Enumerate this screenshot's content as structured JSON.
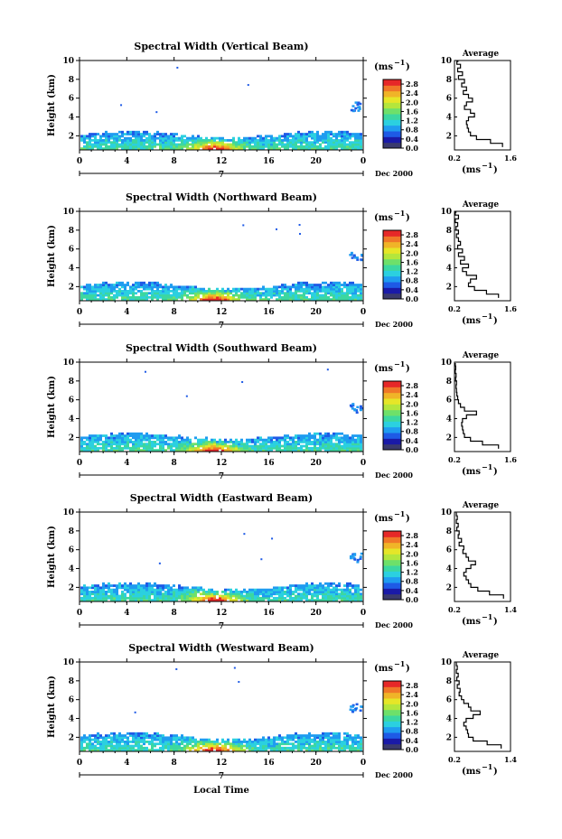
{
  "figure": {
    "xlabel": "Local Time",
    "date_label": "Dec 2000",
    "day_label": "7",
    "y_unit_label": "Height (km)",
    "colorbar_unit": "(ms",
    "colorbar_unit_exp": "−1",
    "colorbar_unit_close": ")",
    "average_title": "Average",
    "average_unit": "(ms",
    "average_unit_exp": "−1",
    "average_unit_close": ")"
  },
  "colors": {
    "colormap": [
      "#3a3a6e",
      "#1a1aa8",
      "#1e5ae6",
      "#1f9cf0",
      "#2bd0e0",
      "#3cd7a0",
      "#6ee06a",
      "#b4e63c",
      "#e6e628",
      "#f0b428",
      "#f07828",
      "#e62828"
    ]
  },
  "chart_data": [
    {
      "type": "heatmap",
      "title": "Spectral Width (Vertical Beam)",
      "xlabel": "Local Time",
      "ylabel": "Height (km)",
      "x_ticks": [
        "0",
        "4",
        "8",
        "12",
        "16",
        "20",
        "0"
      ],
      "xlim": [
        0,
        24
      ],
      "y_ticks": [
        "2",
        "4",
        "6",
        "8",
        "10"
      ],
      "ylim": [
        0.5,
        10
      ],
      "colorbar": {
        "unit": "(ms−1)",
        "ticks": [
          "0.0",
          "0.4",
          "0.8",
          "1.2",
          "1.6",
          "2.0",
          "2.4",
          "2.8"
        ],
        "range": [
          0,
          3
        ]
      },
      "average_profile": {
        "title": "Average",
        "xlabel": "(ms−1)",
        "x_ticks": [
          "0.2",
          "1.6"
        ],
        "xlim": [
          0.2,
          1.6
        ],
        "y_ticks": [
          "2",
          "4",
          "6",
          "8",
          "10"
        ],
        "ylim": [
          0.5,
          10
        ],
        "height": [
          0.8,
          1.2,
          1.6,
          2.0,
          2.4,
          2.8,
          3.2,
          3.6,
          4.0,
          4.4,
          4.8,
          5.2,
          5.6,
          6.0,
          6.4,
          6.8,
          7.2,
          7.6,
          8.0,
          8.4,
          8.8,
          9.2,
          9.6,
          9.9
        ],
        "width": [
          1.4,
          1.1,
          0.75,
          0.6,
          0.55,
          0.52,
          0.5,
          0.55,
          0.7,
          0.6,
          0.45,
          0.5,
          0.65,
          0.55,
          0.42,
          0.5,
          0.38,
          0.45,
          0.3,
          0.4,
          0.28,
          0.35,
          0.26,
          0.3
        ]
      }
    },
    {
      "type": "heatmap",
      "title": "Spectral Width (Northward Beam)",
      "xlabel": "Local Time",
      "ylabel": "Height (km)",
      "x_ticks": [
        "0",
        "4",
        "8",
        "12",
        "16",
        "20",
        "0"
      ],
      "xlim": [
        0,
        24
      ],
      "y_ticks": [
        "2",
        "4",
        "6",
        "8",
        "10"
      ],
      "ylim": [
        0.5,
        10
      ],
      "colorbar": {
        "unit": "(ms−1)",
        "ticks": [
          "0.0",
          "0.4",
          "0.8",
          "1.2",
          "1.6",
          "2.0",
          "2.4",
          "2.8"
        ],
        "range": [
          0,
          3
        ]
      },
      "average_profile": {
        "title": "Average",
        "xlabel": "(ms−1)",
        "x_ticks": [
          "0.2",
          "1.6"
        ],
        "xlim": [
          0.2,
          1.6
        ],
        "y_ticks": [
          "2",
          "4",
          "6",
          "8",
          "10"
        ],
        "ylim": [
          0.5,
          10
        ],
        "height": [
          0.8,
          1.2,
          1.6,
          2.0,
          2.4,
          2.8,
          3.2,
          3.6,
          4.0,
          4.4,
          4.8,
          5.2,
          5.6,
          6.0,
          6.4,
          6.8,
          7.2,
          7.6,
          8.0,
          8.4,
          8.8,
          9.2,
          9.6,
          9.9
        ],
        "width": [
          1.3,
          1.0,
          0.7,
          0.55,
          0.6,
          0.75,
          0.5,
          0.4,
          0.55,
          0.35,
          0.45,
          0.3,
          0.4,
          0.28,
          0.35,
          0.3,
          0.25,
          0.3,
          0.24,
          0.28,
          0.22,
          0.3,
          0.22,
          0.25
        ]
      }
    },
    {
      "type": "heatmap",
      "title": "Spectral Width (Southward Beam)",
      "xlabel": "Local Time",
      "ylabel": "Height (km)",
      "x_ticks": [
        "0",
        "4",
        "8",
        "12",
        "16",
        "20",
        "0"
      ],
      "xlim": [
        0,
        24
      ],
      "y_ticks": [
        "2",
        "4",
        "6",
        "8",
        "10"
      ],
      "ylim": [
        0.5,
        10
      ],
      "colorbar": {
        "unit": "(ms−1)",
        "ticks": [
          "0.0",
          "0.4",
          "0.8",
          "1.2",
          "1.6",
          "2.0",
          "2.4",
          "2.8"
        ],
        "range": [
          0,
          3
        ]
      },
      "average_profile": {
        "title": "Average",
        "xlabel": "(ms−1)",
        "x_ticks": [
          "0.2",
          "1.6"
        ],
        "xlim": [
          0.2,
          1.6
        ],
        "y_ticks": [
          "2",
          "4",
          "6",
          "8",
          "10"
        ],
        "ylim": [
          0.5,
          10
        ],
        "height": [
          0.8,
          1.2,
          1.6,
          2.0,
          2.4,
          2.8,
          3.2,
          3.6,
          4.0,
          4.4,
          4.8,
          5.2,
          5.6,
          6.0,
          6.4,
          6.8,
          7.2,
          7.6,
          8.0,
          8.4,
          8.8,
          9.2,
          9.6,
          9.9
        ],
        "width": [
          1.3,
          0.9,
          0.6,
          0.45,
          0.42,
          0.4,
          0.38,
          0.4,
          0.5,
          0.75,
          0.45,
          0.35,
          0.3,
          0.28,
          0.26,
          0.25,
          0.24,
          0.25,
          0.23,
          0.24,
          0.22,
          0.23,
          0.22,
          0.22
        ]
      }
    },
    {
      "type": "heatmap",
      "title": "Spectral Width (Eastward Beam)",
      "xlabel": "Local Time",
      "ylabel": "Height (km)",
      "x_ticks": [
        "0",
        "4",
        "8",
        "12",
        "16",
        "20",
        "0"
      ],
      "xlim": [
        0,
        24
      ],
      "y_ticks": [
        "2",
        "4",
        "6",
        "8",
        "10"
      ],
      "ylim": [
        0.5,
        10
      ],
      "colorbar": {
        "unit": "(ms−1)",
        "ticks": [
          "0.0",
          "0.4",
          "0.8",
          "1.2",
          "1.6",
          "2.0",
          "2.4",
          "2.8"
        ],
        "range": [
          0,
          3
        ]
      },
      "average_profile": {
        "title": "Average",
        "xlabel": "(ms−1)",
        "x_ticks": [
          "0.2",
          "1.4"
        ],
        "xlim": [
          0.2,
          1.4
        ],
        "y_ticks": [
          "2",
          "4",
          "6",
          "8",
          "10"
        ],
        "ylim": [
          0.5,
          10
        ],
        "height": [
          0.8,
          1.2,
          1.6,
          2.0,
          2.4,
          2.8,
          3.2,
          3.6,
          4.0,
          4.4,
          4.8,
          5.2,
          5.6,
          6.0,
          6.4,
          6.8,
          7.2,
          7.6,
          8.0,
          8.4,
          8.8,
          9.2,
          9.6,
          9.9
        ],
        "width": [
          1.25,
          0.95,
          0.7,
          0.55,
          0.5,
          0.45,
          0.4,
          0.45,
          0.55,
          0.65,
          0.5,
          0.45,
          0.38,
          0.4,
          0.3,
          0.35,
          0.28,
          0.3,
          0.25,
          0.28,
          0.24,
          0.26,
          0.24,
          0.25
        ]
      }
    },
    {
      "type": "heatmap",
      "title": "Spectral Width (Westward Beam)",
      "xlabel": "Local Time",
      "ylabel": "Height (km)",
      "x_ticks": [
        "0",
        "4",
        "8",
        "12",
        "16",
        "20",
        "0"
      ],
      "xlim": [
        0,
        24
      ],
      "y_ticks": [
        "2",
        "4",
        "6",
        "8",
        "10"
      ],
      "ylim": [
        0.5,
        10
      ],
      "colorbar": {
        "unit": "(ms−1)",
        "ticks": [
          "0.0",
          "0.4",
          "0.8",
          "1.2",
          "1.6",
          "2.0",
          "2.4",
          "2.8"
        ],
        "range": [
          0,
          3
        ]
      },
      "average_profile": {
        "title": "Average",
        "xlabel": "(ms−1)",
        "x_ticks": [
          "0.2",
          "1.4"
        ],
        "xlim": [
          0.2,
          1.4
        ],
        "y_ticks": [
          "2",
          "4",
          "6",
          "8",
          "10"
        ],
        "ylim": [
          0.5,
          10
        ],
        "height": [
          0.8,
          1.2,
          1.6,
          2.0,
          2.4,
          2.8,
          3.2,
          3.6,
          4.0,
          4.4,
          4.8,
          5.2,
          5.6,
          6.0,
          6.4,
          6.8,
          7.2,
          7.6,
          8.0,
          8.4,
          8.8,
          9.2,
          9.6,
          9.9
        ],
        "width": [
          1.2,
          0.9,
          0.6,
          0.5,
          0.48,
          0.45,
          0.4,
          0.45,
          0.6,
          0.75,
          0.55,
          0.5,
          0.4,
          0.35,
          0.3,
          0.32,
          0.26,
          0.3,
          0.25,
          0.28,
          0.24,
          0.26,
          0.24,
          0.25
        ]
      }
    }
  ]
}
